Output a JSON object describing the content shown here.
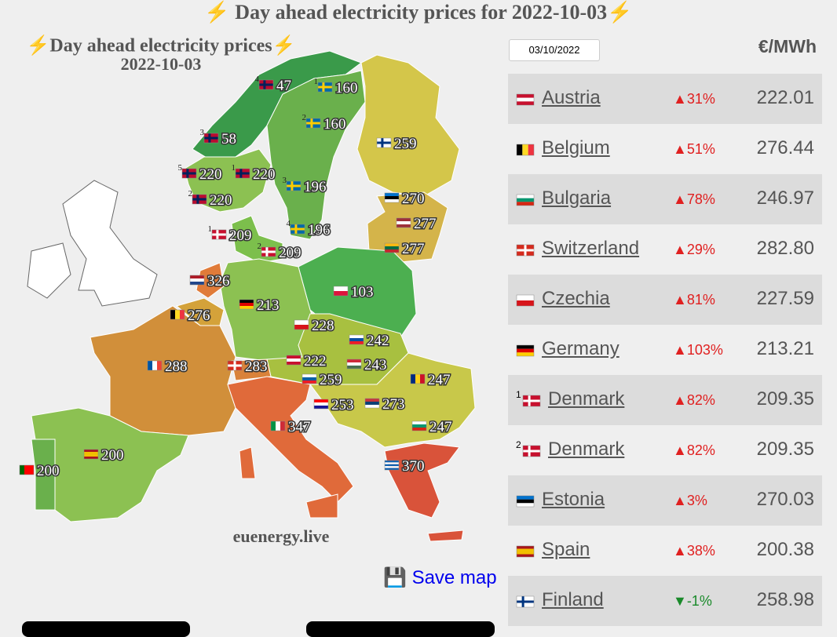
{
  "page": {
    "title": "⚡ Day ahead electricity prices for 2022-10-03⚡"
  },
  "map": {
    "title": "⚡Day ahead electricity prices⚡",
    "date": "2022-10-03",
    "watermark": "euenergy.live",
    "labels": [
      {
        "zone": "4",
        "price": "47"
      },
      {
        "zone": "1",
        "price": "160"
      },
      {
        "zone": "2",
        "price": "160"
      },
      {
        "zone": null,
        "price": "259"
      },
      {
        "zone": "3",
        "price": "58"
      },
      {
        "zone": "5",
        "price": "220"
      },
      {
        "zone": "1",
        "price": "220"
      },
      {
        "zone": "3",
        "price": "196"
      },
      {
        "zone": "2",
        "price": "220"
      },
      {
        "zone": null,
        "price": "270"
      },
      {
        "zone": null,
        "price": "277"
      },
      {
        "zone": null,
        "price": "277"
      },
      {
        "zone": "1",
        "price": "209"
      },
      {
        "zone": "4",
        "price": "196"
      },
      {
        "zone": "2",
        "price": "209"
      },
      {
        "zone": null,
        "price": "326"
      },
      {
        "zone": null,
        "price": "103"
      },
      {
        "zone": null,
        "price": "276"
      },
      {
        "zone": null,
        "price": "213"
      },
      {
        "zone": null,
        "price": "228"
      },
      {
        "zone": null,
        "price": "242"
      },
      {
        "zone": null,
        "price": "288"
      },
      {
        "zone": null,
        "price": "283"
      },
      {
        "zone": null,
        "price": "222"
      },
      {
        "zone": null,
        "price": "243"
      },
      {
        "zone": null,
        "price": "247"
      },
      {
        "zone": null,
        "price": "259"
      },
      {
        "zone": null,
        "price": "253"
      },
      {
        "zone": null,
        "price": "273"
      },
      {
        "zone": null,
        "price": "247"
      },
      {
        "zone": null,
        "price": "347"
      },
      {
        "zone": null,
        "price": "200"
      },
      {
        "zone": null,
        "price": "200"
      },
      {
        "zone": null,
        "price": "370"
      }
    ]
  },
  "save": {
    "icon": "💾",
    "label": "Save map"
  },
  "table": {
    "date": "03/10/2022",
    "unit": "€/MWh",
    "rows": [
      {
        "zone": null,
        "country": "Austria",
        "change": "▲31%",
        "price": "222.01"
      },
      {
        "zone": null,
        "country": "Belgium",
        "change": "▲51%",
        "price": "276.44"
      },
      {
        "zone": null,
        "country": "Bulgaria",
        "change": "▲78%",
        "price": "246.97"
      },
      {
        "zone": null,
        "country": "Switzerland",
        "change": "▲29%",
        "price": "282.80"
      },
      {
        "zone": null,
        "country": "Czechia",
        "change": "▲81%",
        "price": "227.59"
      },
      {
        "zone": null,
        "country": "Germany",
        "change": "▲103%",
        "price": "213.21"
      },
      {
        "zone": "1",
        "country": "Denmark",
        "change": "▲82%",
        "price": "209.35"
      },
      {
        "zone": "2",
        "country": "Denmark",
        "change": "▲82%",
        "price": "209.35"
      },
      {
        "zone": null,
        "country": "Estonia",
        "change": "▲3%",
        "price": "270.03"
      },
      {
        "zone": null,
        "country": "Spain",
        "change": "▲38%",
        "price": "200.38"
      },
      {
        "zone": null,
        "country": "Finland",
        "change": "▼-1%",
        "price": "258.98"
      }
    ]
  }
}
